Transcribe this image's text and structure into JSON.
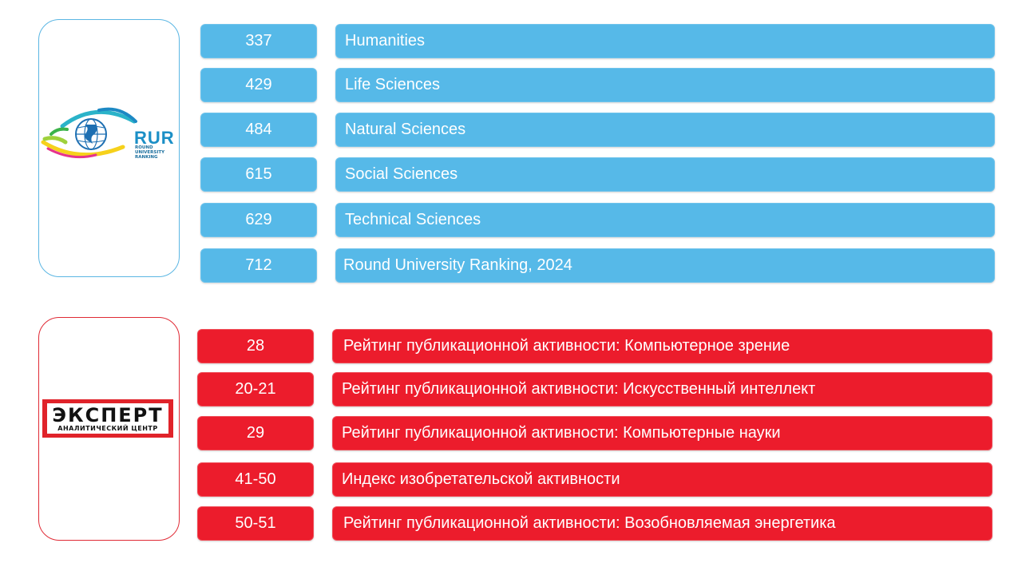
{
  "rur_section": {
    "logo_text": "RUR",
    "logo_subtext": "ROUND UNIVERSITY RANKING",
    "rows": [
      {
        "rank": "337",
        "label": "Humanities"
      },
      {
        "rank": "429",
        "label": "Life Sciences"
      },
      {
        "rank": "484",
        "label": "Natural Sciences"
      },
      {
        "rank": "615",
        "label": "Social Sciences"
      },
      {
        "rank": "629",
        "label": "Technical Sciences"
      },
      {
        "rank": "712",
        "label": "Round University Ranking, 2024"
      }
    ]
  },
  "expert_section": {
    "logo_title": "ЭКСПЕРТ",
    "logo_subtitle": "АНАЛИТИЧЕСКИЙ ЦЕНТР",
    "rows": [
      {
        "rank": "28",
        "label": "Рейтинг публикационной активности: Компьютерное зрение"
      },
      {
        "rank": "20-21",
        "label": "Рейтинг публикационной активности: Искусственный интеллект"
      },
      {
        "rank": "29",
        "label": "Рейтинг публикационной активности: Компьютерные науки"
      },
      {
        "rank": "41-50",
        "label": "Индекс изобретательской активности"
      },
      {
        "rank": "50-51",
        "label": "Рейтинг публикационной активности: Возобновляемая энергетика"
      }
    ]
  },
  "colors": {
    "blue": "#56b9e8",
    "red": "#ec1c2c"
  }
}
